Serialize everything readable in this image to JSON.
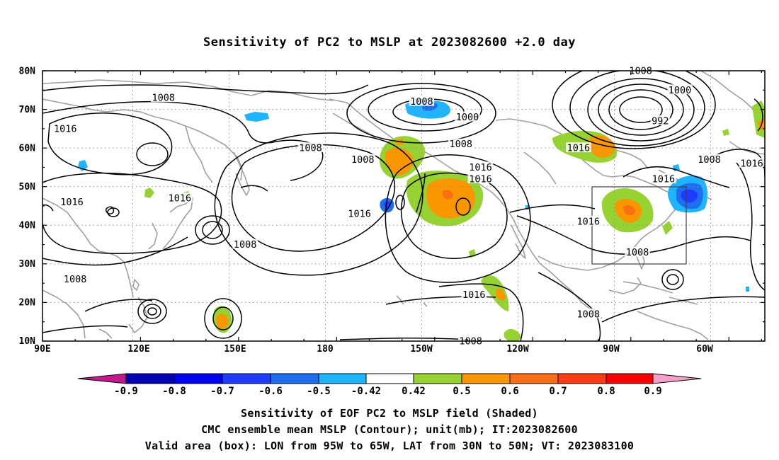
{
  "title": "Sensitivity of PC2 to MSLP at 2023082600 +2.0 day",
  "map": {
    "lat_ticks": [
      "80N",
      "70N",
      "60N",
      "50N",
      "40N",
      "30N",
      "20N",
      "10N"
    ],
    "lon_ticks": [
      "90E",
      "120E",
      "150E",
      "180",
      "150W",
      "120W",
      "90W",
      "60W"
    ],
    "valid_box": {
      "lon_from": "95W",
      "lon_to": "65W",
      "lat_from": "30N",
      "lat_to": "50N"
    },
    "contour_labels": [
      {
        "text": "1008",
        "lon": 127,
        "lat": 73
      },
      {
        "text": "1016",
        "lon": 97,
        "lat": 65
      },
      {
        "text": "1016",
        "lon": 99,
        "lat": 46
      },
      {
        "text": "1016",
        "lon": 132,
        "lat": 47
      },
      {
        "text": "1008",
        "lon": 152,
        "lat": 35
      },
      {
        "text": "1008",
        "lon": 100,
        "lat": 26
      },
      {
        "text": "1008",
        "lon": 188,
        "lat": 57
      },
      {
        "text": "1008",
        "lon": 172,
        "lat": 60
      },
      {
        "text": "1016",
        "lon": 187,
        "lat": 43
      },
      {
        "text": "1008",
        "lon": 206,
        "lat": 72
      },
      {
        "text": "1000",
        "lon": 220,
        "lat": 68
      },
      {
        "text": "1008",
        "lon": 218,
        "lat": 61
      },
      {
        "text": "1016",
        "lon": 224,
        "lat": 55
      },
      {
        "text": "1016",
        "lon": 224,
        "lat": 52
      },
      {
        "text": "1016",
        "lon": 222,
        "lat": 22
      },
      {
        "text": "1008",
        "lon": 221,
        "lat": 10
      },
      {
        "text": "1016",
        "lon": 257,
        "lat": 41
      },
      {
        "text": "1016",
        "lon": 254,
        "lat": 60
      },
      {
        "text": "1008",
        "lon": 257,
        "lat": 17
      },
      {
        "text": "1008",
        "lon": 272,
        "lat": 33
      },
      {
        "text": "1008",
        "lon": 273,
        "lat": 80
      },
      {
        "text": "1000",
        "lon": 285,
        "lat": 75
      },
      {
        "text": "992",
        "lon": 279,
        "lat": 67
      },
      {
        "text": "1016",
        "lon": 280,
        "lat": 52
      },
      {
        "text": "1008",
        "lon": 294,
        "lat": 57
      },
      {
        "text": "1016",
        "lon": 307,
        "lat": 56
      }
    ]
  },
  "colorbar": {
    "labels": [
      "-0.9",
      "-0.8",
      "-0.7",
      "-0.6",
      "-0.5",
      "-0.42",
      "0.42",
      "0.5",
      "0.6",
      "0.7",
      "0.8",
      "0.9"
    ],
    "colors": {
      "lt_m09": "#c21a8e",
      "m09_m08": "#0000b4",
      "m08_m07": "#0000f0",
      "m07_m06": "#1e3cff",
      "m06_m05": "#1e6ef0",
      "m05_m042": "#1eb4ff",
      "m042_042": "#ffffff",
      "042_05": "#96d232",
      "05_06": "#fa9600",
      "06_07": "#fa6e14",
      "07_08": "#ff3c14",
      "08_09": "#fa0000",
      "gt_09": "#f5a0c8"
    }
  },
  "captions": {
    "line1": "Sensitivity of EOF PC2 to MSLP field (Shaded)",
    "line2": "CMC ensemble mean MSLP (Contour); unit(mb); IT:2023082600",
    "line3": "Valid area (box): LON from 95W to 65W, LAT from 30N to 50N; VT: 2023083100"
  }
}
